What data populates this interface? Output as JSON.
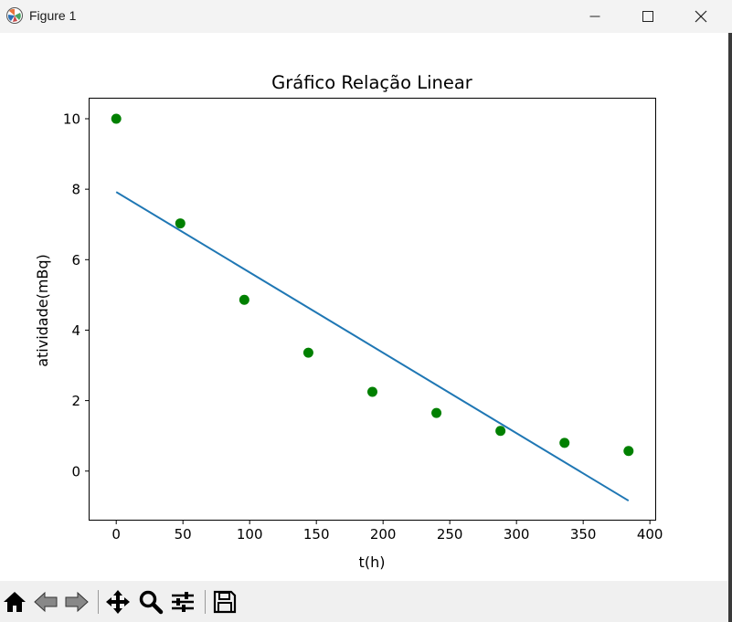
{
  "window": {
    "title": "Figure 1"
  },
  "toolbar": {
    "buttons": [
      {
        "name": "home-button",
        "icon": "home-icon"
      },
      {
        "name": "back-button",
        "icon": "back-arrow-icon"
      },
      {
        "name": "forward-button",
        "icon": "forward-arrow-icon"
      },
      {
        "name": "pan-button",
        "icon": "move-icon"
      },
      {
        "name": "zoom-button",
        "icon": "magnifier-icon"
      },
      {
        "name": "configure-subplots-button",
        "icon": "sliders-icon"
      },
      {
        "name": "save-button",
        "icon": "floppy-disk-icon"
      }
    ]
  },
  "chart_data": {
    "type": "scatter",
    "title": "Gráfico Relação Linear",
    "xlabel": "t(h)",
    "ylabel": "atividade(mBq)",
    "xlim": [
      -20,
      404
    ],
    "ylim": [
      -1.38,
      10.57
    ],
    "xticks": [
      0,
      50,
      100,
      150,
      200,
      250,
      300,
      350,
      400
    ],
    "yticks": [
      0,
      2,
      4,
      6,
      8,
      10
    ],
    "grid": false,
    "series": [
      {
        "kind": "points",
        "color": "#008000",
        "x": [
          0,
          48,
          96,
          144,
          192,
          240,
          288,
          336,
          384
        ],
        "y": [
          10.0,
          7.03,
          4.86,
          3.36,
          2.25,
          1.65,
          1.14,
          0.8,
          0.57
        ]
      },
      {
        "kind": "line",
        "color": "#1f77b4",
        "x": [
          0,
          384
        ],
        "y": [
          7.92,
          -0.84
        ]
      }
    ]
  }
}
